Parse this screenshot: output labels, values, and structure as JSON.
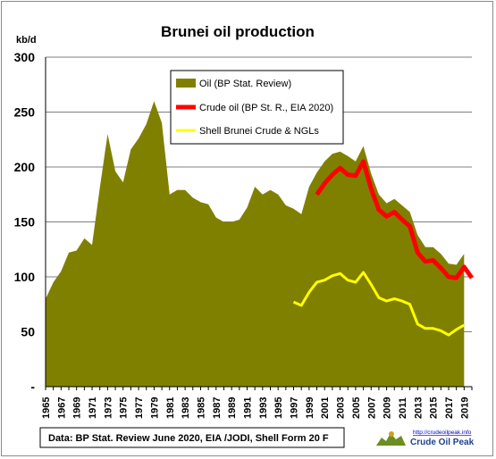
{
  "chart_data": {
    "type": "area+line",
    "title": "Brunei oil production",
    "ylabel": "kb/d",
    "ylim": [
      0,
      300
    ],
    "yticks": [
      "300",
      "250",
      "200",
      "150",
      "100",
      "50",
      "-"
    ],
    "xticks": [
      "1965",
      "1967",
      "1969",
      "1971",
      "1973",
      "1975",
      "1977",
      "1979",
      "1981",
      "1983",
      "1985",
      "1987",
      "1989",
      "1991",
      "1993",
      "1995",
      "1997",
      "1999",
      "2001",
      "2003",
      "2005",
      "2007",
      "2009",
      "2011",
      "2013",
      "2015",
      "2017",
      "2019"
    ],
    "grid": "horizontal",
    "legend_position": "top-center",
    "series": [
      {
        "name": "Oil (BP Stat. Review)",
        "kind": "area",
        "color": "#808000",
        "x": [
          1965,
          1966,
          1967,
          1968,
          1969,
          1970,
          1971,
          1972,
          1973,
          1974,
          1975,
          1976,
          1977,
          1978,
          1979,
          1980,
          1981,
          1982,
          1983,
          1984,
          1985,
          1986,
          1987,
          1988,
          1989,
          1990,
          1991,
          1992,
          1993,
          1994,
          1995,
          1996,
          1997,
          1998,
          1999,
          2000,
          2001,
          2002,
          2003,
          2004,
          2005,
          2006,
          2007,
          2008,
          2009,
          2010,
          2011,
          2012,
          2013,
          2014,
          2015,
          2016,
          2017,
          2018,
          2019
        ],
        "values": [
          80,
          95,
          105,
          122,
          124,
          135,
          129,
          181,
          230,
          196,
          186,
          216,
          226,
          239,
          260,
          240,
          175,
          179,
          179,
          172,
          168,
          166,
          154,
          150,
          150,
          152,
          163,
          182,
          175,
          179,
          175,
          165,
          162,
          157,
          182,
          195,
          205,
          212,
          214,
          210,
          205,
          219,
          194,
          175,
          167,
          171,
          165,
          159,
          138,
          127,
          127,
          121,
          112,
          111,
          121
        ]
      },
      {
        "name": "Crude oil (BP St. R., EIA 2020)",
        "kind": "line",
        "color": "#ff0000",
        "x": [
          2000,
          2001,
          2002,
          2003,
          2004,
          2005,
          2006,
          2007,
          2008,
          2009,
          2010,
          2011,
          2012,
          2013,
          2014,
          2015,
          2016,
          2017,
          2018,
          2019,
          2020
        ],
        "values": [
          175,
          185,
          193,
          199,
          193,
          192,
          205,
          180,
          161,
          155,
          159,
          152,
          146,
          122,
          114,
          115,
          108,
          100,
          99,
          109,
          99
        ]
      },
      {
        "name": "Shell Brunei  Crude & NGLs",
        "kind": "line",
        "color": "#ffff00",
        "x": [
          1997,
          1998,
          1999,
          2000,
          2001,
          2002,
          2003,
          2004,
          2005,
          2006,
          2007,
          2008,
          2009,
          2010,
          2011,
          2012,
          2013,
          2014,
          2015,
          2016,
          2017,
          2018,
          2019
        ],
        "values": [
          77,
          74,
          86,
          95,
          97,
          101,
          103,
          97,
          95,
          104,
          93,
          81,
          78,
          80,
          78,
          75,
          57,
          53,
          53,
          51,
          47,
          52,
          56
        ]
      }
    ],
    "source_note": "Data: BP Stat. Review June 2020, EIA /JODI, Shell Form 20 F",
    "logo_url_text": "http://crudeoilpeak.info",
    "logo_name": "Crude Oil Peak"
  }
}
